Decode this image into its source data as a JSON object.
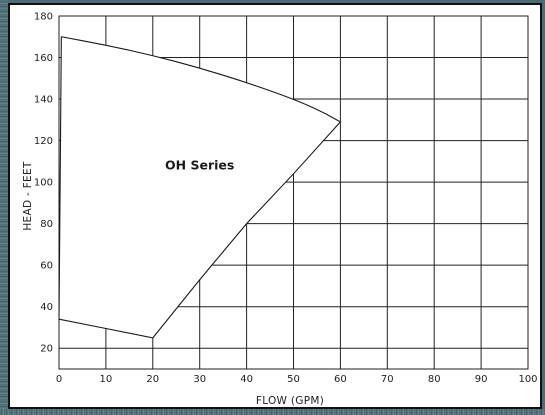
{
  "chart_data": {
    "type": "area",
    "xlabel": "FLOW (GPM)",
    "ylabel": "HEAD - FEET",
    "xlim": [
      0,
      100
    ],
    "ylim": [
      10,
      180
    ],
    "x_ticks": [
      0,
      10,
      20,
      30,
      40,
      50,
      60,
      70,
      80,
      90,
      100
    ],
    "y_ticks": [
      20,
      40,
      60,
      80,
      100,
      120,
      140,
      160,
      180
    ],
    "grid": true,
    "region": {
      "label": "OH Series",
      "label_at": [
        30,
        108
      ],
      "top_curve": [
        [
          0.5,
          170
        ],
        [
          10,
          166
        ],
        [
          20,
          161
        ],
        [
          30,
          155
        ],
        [
          40,
          148
        ],
        [
          50,
          140
        ],
        [
          56,
          134
        ],
        [
          60,
          129
        ]
      ],
      "bottom_curve": [
        [
          0,
          34
        ],
        [
          10,
          29.5
        ],
        [
          20,
          25
        ]
      ],
      "right_edge": [
        [
          20,
          25
        ],
        [
          30,
          53
        ],
        [
          40,
          80
        ],
        [
          50,
          104
        ],
        [
          60,
          129
        ]
      ],
      "left_edge": [
        [
          0,
          34
        ],
        [
          0,
          170
        ]
      ]
    }
  }
}
